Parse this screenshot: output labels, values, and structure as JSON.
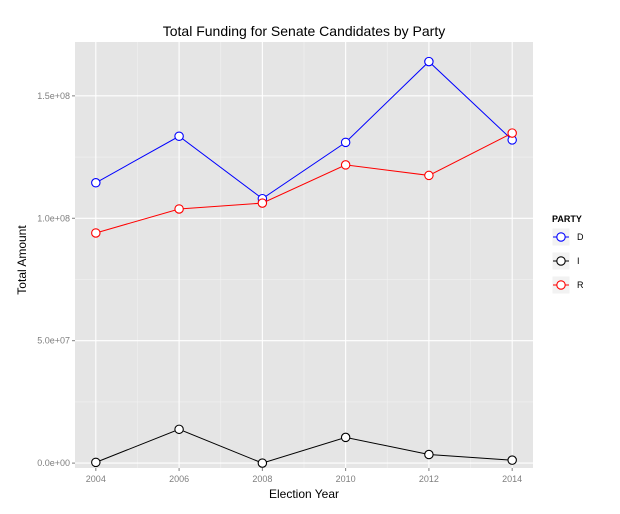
{
  "chart_data": {
    "type": "line",
    "title": "Total Funding for Senate Candidates by Party",
    "xlabel": "Election Year",
    "ylabel": "Total Amount",
    "x": [
      2004,
      2006,
      2008,
      2010,
      2012,
      2014
    ],
    "x_ticks": [
      "2004",
      "2006",
      "2008",
      "2010",
      "2012",
      "2014"
    ],
    "y_ticks": [
      {
        "value": 0,
        "label": "0.0e+00"
      },
      {
        "value": 50000000,
        "label": "5.0e+07"
      },
      {
        "value": 100000000,
        "label": "1.0e+08"
      },
      {
        "value": 150000000,
        "label": "1.5e+08"
      }
    ],
    "xlim": [
      2003.5,
      2014.5
    ],
    "ylim": [
      -2000000,
      172000000
    ],
    "grid": true,
    "background": "#e5e5e5",
    "legend": {
      "title": "PARTY",
      "placement": "right"
    },
    "series": [
      {
        "name": "D",
        "color": "#0000ff",
        "values": [
          114500000,
          133500000,
          108000000,
          131000000,
          164000000,
          132000000
        ]
      },
      {
        "name": "I",
        "color": "#000000",
        "values": [
          300000,
          13800000,
          0,
          10500000,
          3500000,
          1200000
        ]
      },
      {
        "name": "R",
        "color": "#ff0000",
        "values": [
          94000000,
          103800000,
          106200000,
          121800000,
          117500000,
          134800000
        ]
      }
    ]
  }
}
